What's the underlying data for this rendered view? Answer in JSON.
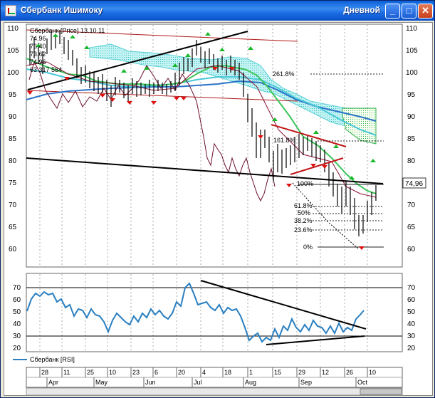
{
  "window": {
    "title": "Сбербанк Ишимоку",
    "period": "Дневной",
    "minimize_glyph": "_",
    "maximize_glyph": "□",
    "close_glyph": "✕"
  },
  "main_chart": {
    "legend_header": "Сбербанк [Price] 13.10.11",
    "legend_lines": [
      "74.96",
      "76.40",
      "73.62",
      "74.96",
      "63 317 584"
    ],
    "price_ticks": [
      "110",
      "105",
      "100",
      "95",
      "90",
      "85",
      "80",
      "75",
      "70",
      "65",
      "60"
    ],
    "last_price": "74,96",
    "fib_labels": [
      "261.8%",
      "161.8%",
      "100%",
      "61.8%",
      "50%",
      "38.2%",
      "23.6%",
      "0%"
    ]
  },
  "rsi_chart": {
    "ticks": [
      "70",
      "60",
      "50",
      "40",
      "30",
      "20"
    ],
    "legend": "Сбербанк [RSI]"
  },
  "date_axis": {
    "days": [
      "28",
      "11",
      "25",
      "10",
      "23",
      "6",
      "20",
      "4",
      "18",
      "1",
      "15",
      "29",
      "12",
      "26",
      "10"
    ],
    "months": [
      "Apr",
      "May",
      "Jun",
      "Jul",
      "Aug",
      "Sep",
      "Oct"
    ]
  },
  "colors": {
    "price_line": "#6b0f2a",
    "cloud_fill": "#b7f0ef",
    "cloud_dots": "#3cc0c8",
    "green_cloud": "#2fb04a",
    "ma_green": "#3cc55a",
    "ma_blue": "#2a72c8",
    "ma_cyan": "#4ac6d8",
    "rsi_line": "#2a7fc0",
    "up_arrow": "#19b82a",
    "down_arrow": "#e01010",
    "trend_red": "#c01818"
  }
}
